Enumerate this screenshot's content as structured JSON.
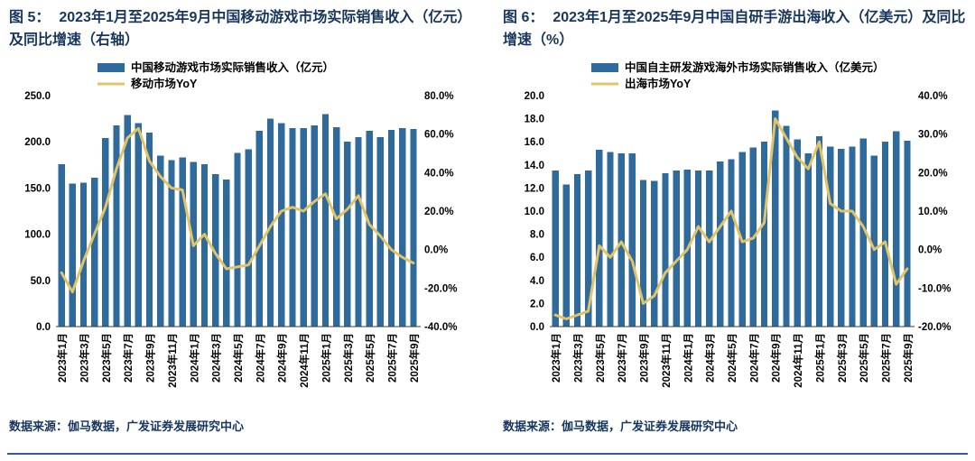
{
  "page": {
    "background": "#ffffff",
    "accent_navy": "#17365D",
    "bottom_rule_color": "#2E5B9B"
  },
  "figures": [
    {
      "label": "图 5：",
      "title": "2023年1月至2025年9月中国移动游戏市场实际销售收入（亿元）及同比增速（右轴）",
      "source": "数据来源：伽马数据，广发证券发展研究中心"
    },
    {
      "label": "图 6：",
      "title": "2023年1月至2025年9月中国自研手游出海收入（亿美元）及同比增速（%）",
      "source": "数据来源：伽马数据，广发证券发展研究中心"
    }
  ],
  "chart_data": [
    {
      "type": "bar",
      "combo": "bar+line",
      "title": "2023年1月至2025年9月中国移动游戏市场实际销售收入（亿元）及同比增速（右轴）",
      "categories": [
        "2023年1月",
        "2023年2月",
        "2023年3月",
        "2023年4月",
        "2023年5月",
        "2023年6月",
        "2023年7月",
        "2023年8月",
        "2023年9月",
        "2023年10月",
        "2023年11月",
        "2023年12月",
        "2024年1月",
        "2024年2月",
        "2024年3月",
        "2024年4月",
        "2024年5月",
        "2024年6月",
        "2024年7月",
        "2024年8月",
        "2024年9月",
        "2024年10月",
        "2024年11月",
        "2024年12月",
        "2025年1月",
        "2025年2月",
        "2025年3月",
        "2025年4月",
        "2025年5月",
        "2025年6月",
        "2025年7月",
        "2025年8月",
        "2025年9月"
      ],
      "x_tick_every": 2,
      "series": [
        {
          "name": "中国移动游戏市场实际销售收入（亿元）",
          "type": "bar",
          "axis": "left",
          "values": [
            176,
            155,
            156,
            161,
            204,
            218,
            229,
            220,
            210,
            185,
            180,
            183,
            178,
            176,
            165,
            159,
            188,
            192,
            212,
            225,
            220,
            215,
            215,
            218,
            230,
            216,
            200,
            205,
            212,
            205,
            213,
            215,
            214
          ]
        },
        {
          "name": "移动市场YoY",
          "type": "line",
          "axis": "right",
          "values": [
            -12,
            -22,
            -6,
            8,
            22,
            42,
            58,
            63,
            46,
            38,
            32,
            31,
            2,
            8,
            -2,
            -10,
            -9,
            -8,
            2,
            12,
            20,
            22,
            20,
            25,
            29,
            16,
            21,
            28,
            13,
            7,
            0,
            -4,
            -7
          ]
        }
      ],
      "left_axis": {
        "min": 0,
        "max": 250,
        "step": 50,
        "tick_format": "0.0"
      },
      "right_axis": {
        "min": -40,
        "max": 80,
        "step": 20,
        "tick_format": "0.0%"
      },
      "colors": {
        "bar": "#2E6B9C",
        "line": "#E2C466"
      },
      "legend_position": "top",
      "grid": false
    },
    {
      "type": "bar",
      "combo": "bar+line",
      "title": "2023年1月至2025年9月中国自研手游出海收入（亿美元）及同比增速（%）",
      "categories": [
        "2023年1月",
        "2023年2月",
        "2023年3月",
        "2023年4月",
        "2023年5月",
        "2023年6月",
        "2023年7月",
        "2023年8月",
        "2023年9月",
        "2023年10月",
        "2023年11月",
        "2023年12月",
        "2024年1月",
        "2024年2月",
        "2024年3月",
        "2024年4月",
        "2024年5月",
        "2024年6月",
        "2024年7月",
        "2024年8月",
        "2024年9月",
        "2024年10月",
        "2024年11月",
        "2024年12月",
        "2025年1月",
        "2025年2月",
        "2025年3月",
        "2025年4月",
        "2025年5月",
        "2025年6月",
        "2025年7月",
        "2025年8月",
        "2025年9月"
      ],
      "x_tick_every": 2,
      "series": [
        {
          "name": "中国自主研发游戏海外市场实际销售收入（亿美元）",
          "type": "bar",
          "axis": "left",
          "values": [
            13.5,
            12.3,
            13.2,
            13.5,
            15.3,
            15.1,
            15.0,
            15.0,
            12.7,
            12.6,
            13.3,
            13.5,
            13.6,
            13.5,
            13.5,
            14.3,
            14.5,
            15.1,
            15.5,
            16.0,
            18.7,
            17.4,
            16.2,
            15.0,
            16.5,
            15.6,
            15.4,
            15.6,
            16.3,
            14.8,
            16.0,
            16.9,
            16.1
          ]
        },
        {
          "name": "出海市场YoY",
          "type": "line",
          "axis": "right",
          "values": [
            -17,
            -18,
            -17,
            -16,
            1,
            -2,
            2,
            -3,
            -14,
            -12,
            -6,
            -3,
            0,
            6,
            2,
            6,
            10,
            2,
            3,
            7,
            34,
            29,
            24,
            21,
            28,
            12,
            10,
            10,
            6,
            0,
            2,
            -9,
            -5
          ]
        }
      ],
      "left_axis": {
        "min": 0,
        "max": 20,
        "step": 2,
        "tick_format": "0.0"
      },
      "right_axis": {
        "min": -20,
        "max": 40,
        "step": 10,
        "tick_format": "0.0%"
      },
      "colors": {
        "bar": "#2E6B9C",
        "line": "#E2C466"
      },
      "legend_position": "top",
      "grid": false
    }
  ]
}
